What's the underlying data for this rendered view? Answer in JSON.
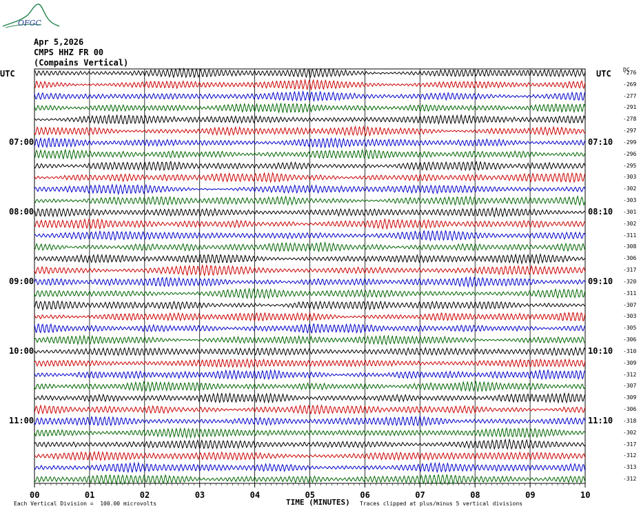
{
  "logo": {
    "text": "OFGC"
  },
  "header": {
    "date": "Apr 5,2026",
    "station": "CMPS HHZ FR 00",
    "location": "(Compains Vertical)"
  },
  "left_tz": "UTC",
  "right_tz": "UTC",
  "dc_label": "DC",
  "colors": {
    "trace_cycle": [
      "#000000",
      "#cc0000",
      "#0000cc",
      "#006600"
    ],
    "grid": "#000000"
  },
  "chart_data": {
    "type": "line",
    "x_axis_label": "TIME (MINUTES)",
    "x_ticks": [
      "00",
      "01",
      "02",
      "03",
      "04",
      "05",
      "06",
      "07",
      "08",
      "09",
      "10"
    ],
    "xlim": [
      0,
      10
    ],
    "left_time_labels": [
      {
        "label": "07:00",
        "row": 6
      },
      {
        "label": "08:00",
        "row": 12
      },
      {
        "label": "09:00",
        "row": 18
      },
      {
        "label": "10:00",
        "row": 24
      },
      {
        "label": "11:00",
        "row": 30
      }
    ],
    "right_time_labels": [
      {
        "label": "07:10",
        "row": 6
      },
      {
        "label": "08:10",
        "row": 12
      },
      {
        "label": "09:10",
        "row": 18
      },
      {
        "label": "10:10",
        "row": 24
      },
      {
        "label": "11:10",
        "row": 30
      }
    ],
    "dc_offsets": [
      -276,
      -269,
      -277,
      -291,
      -278,
      -297,
      -299,
      -296,
      -295,
      -303,
      -302,
      -303,
      -301,
      -302,
      -311,
      -308,
      -306,
      -317,
      -320,
      -311,
      -307,
      -303,
      -305,
      -306,
      -310,
      -309,
      -312,
      -307,
      -309,
      -306,
      -318,
      -302,
      -317,
      -312,
      -313,
      -312
    ],
    "traces_count": 36
  },
  "footer": {
    "vertical_division": "Each Vertical Division =  100.00 microvolts",
    "clipping": "Traces clipped at plus/minus 5 vertical divisions"
  }
}
